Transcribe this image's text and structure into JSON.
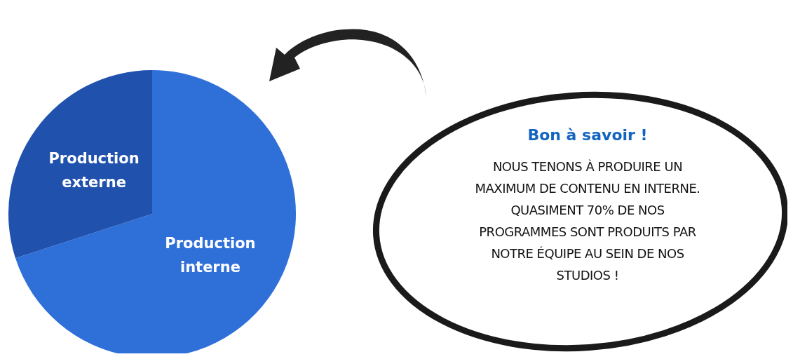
{
  "chart_data": {
    "type": "pie",
    "categories": [
      "Production interne",
      "Production externe"
    ],
    "values": [
      70,
      30
    ],
    "colors": [
      "#2f6fd8",
      "#1f51ad"
    ],
    "legend": false,
    "annotations": [
      "Bon à savoir !",
      "NOUS TENONS À PRODUIRE UN MAXIMUM DE CONTENU EN INTERNE. QUASIMENT 70% DE NOS PROGRAMMES SONT PRODUITS PAR NOTRE ÉQUIPE AU SEIN DE NOS STUDIOS !"
    ]
  }
}
